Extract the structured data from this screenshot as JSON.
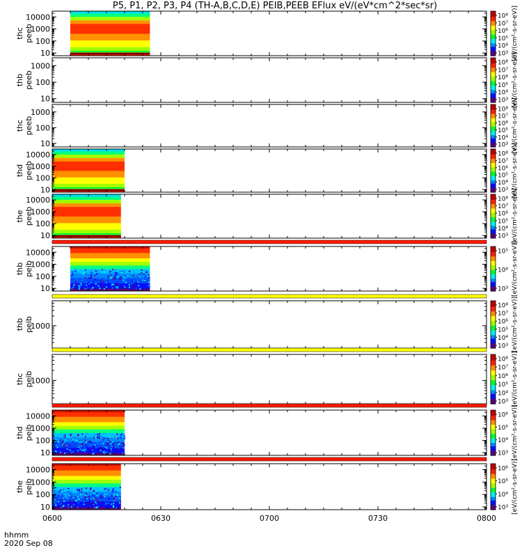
{
  "title": "P5, P1, P2, P3, P4 (TH-A,B,C,D,E) PEIB,PEEB EFlux eV/(eV*cm^2*sec*sr)",
  "time_axis": {
    "unit_label": "hhmm",
    "date_label": "2020 Sep 08",
    "ticks": [
      "0600",
      "0630",
      "0700",
      "0730",
      "0800"
    ]
  },
  "colors": {
    "bar_red": "#ff1a00",
    "bar_yellow": "#ffff00",
    "colormap": [
      "#5b0077",
      "#0010ff",
      "#0088ff",
      "#00f0f0",
      "#00ff30",
      "#a0ff00",
      "#ffff00",
      "#ff9000",
      "#ff2000",
      "#c00000",
      "#ffffff"
    ]
  },
  "chart_data": [
    {
      "type": "heatmap",
      "probe": "thc",
      "species": "peeb",
      "ylabel_1": "thc",
      "ylabel_2": "peeb",
      "y_scale": "log",
      "ylim": [
        6,
        30000
      ],
      "yticks": [
        "10000",
        "1000",
        "100",
        "10"
      ],
      "data_minutes": [
        5,
        27
      ],
      "layout": "mid",
      "bar_above": "none",
      "colorbar": {
        "labels": [
          "10⁸",
          "10⁷",
          "10⁶",
          "10⁵",
          "10⁴",
          "10³"
        ],
        "unit": "[eV/(cm²-s-sr-eV)]"
      }
    },
    {
      "type": "heatmap",
      "probe": "thb",
      "species": "peeb",
      "ylabel_1": "thb",
      "ylabel_2": "peeb",
      "y_scale": "log",
      "ylim": [
        6,
        3000
      ],
      "yticks": [
        "1000",
        "100",
        "10"
      ],
      "data_minutes": null,
      "layout": "none",
      "bar_above": "none",
      "colorbar": {
        "labels": [
          "10⁸",
          "10⁷",
          "10⁶",
          "10⁵",
          "10⁴",
          "10³"
        ],
        "unit": "[eV/(cm²-s-sr-eV)]"
      }
    },
    {
      "type": "heatmap",
      "probe": "thc",
      "species": "peeb",
      "ylabel_1": "thc",
      "ylabel_2": "peeb",
      "y_scale": "log",
      "ylim": [
        6,
        3000
      ],
      "yticks": [
        "1000",
        "100",
        "10"
      ],
      "data_minutes": null,
      "layout": "none",
      "bar_above": "none",
      "colorbar": {
        "labels": [
          "10⁸",
          "10⁷",
          "10⁶",
          "10⁵",
          "10⁴",
          "10³"
        ],
        "unit": "[eV/(cm²-s-sr-eV)]"
      }
    },
    {
      "type": "heatmap",
      "probe": "thd",
      "species": "peeb",
      "ylabel_1": "thd",
      "ylabel_2": "peeb",
      "y_scale": "log",
      "ylim": [
        6,
        30000
      ],
      "yticks": [
        "10000",
        "1000",
        "100",
        "10"
      ],
      "data_minutes": [
        0,
        20
      ],
      "layout": "mid",
      "bar_above": "none",
      "colorbar": {
        "labels": [
          "10⁸",
          "10⁷",
          "10⁶",
          "10⁵",
          "10⁴",
          "10³"
        ],
        "unit": "[eV/(cm²-s-sr-eV)]"
      }
    },
    {
      "type": "heatmap",
      "probe": "the",
      "species": "peeb",
      "ylabel_1": "the",
      "ylabel_2": "peeb",
      "y_scale": "log",
      "ylim": [
        6,
        30000
      ],
      "yticks": [
        "10000",
        "1000",
        "100",
        "10"
      ],
      "data_minutes": [
        0,
        19
      ],
      "layout": "mid",
      "bar_above": "none",
      "colorbar": {
        "labels": [
          "10⁸",
          "10⁷",
          "10⁶",
          "10⁵",
          "10⁴",
          "10³"
        ],
        "unit": "[eV/(cm²-s-sr-eV)]"
      }
    },
    {
      "type": "heatmap",
      "probe": "thb",
      "species": "peib",
      "ylabel_1": "thb",
      "ylabel_2": "peib",
      "y_scale": "log",
      "ylim": [
        6,
        30000
      ],
      "yticks": [
        "10000",
        "1000",
        "100",
        "10"
      ],
      "data_minutes": [
        5,
        27
      ],
      "layout": "ion",
      "bar_above": "red",
      "colorbar": {
        "labels": [
          "10⁵",
          "10⁴",
          "10³"
        ],
        "unit": "[eV/(cm²-s-sr-eV)]"
      }
    },
    {
      "type": "heatmap",
      "probe": "thb",
      "species": "peib",
      "ylabel_1": "thb",
      "ylabel_2": "peib",
      "y_scale": "log",
      "ylim": [
        200,
        6000
      ],
      "yticks": [
        "1000"
      ],
      "data_minutes": null,
      "layout": "none",
      "bar_above": "yellow",
      "colorbar": {
        "labels": [
          "10⁸",
          "10⁷",
          "10⁶",
          "10⁵",
          "10⁴",
          "10³"
        ],
        "unit": "[eV/(cm²-s-sr-eV)]"
      }
    },
    {
      "type": "heatmap",
      "probe": "thc",
      "species": "peib",
      "ylabel_1": "thc",
      "ylabel_2": "peib",
      "y_scale": "log",
      "ylim": [
        200,
        6000
      ],
      "yticks": [
        "1000"
      ],
      "data_minutes": null,
      "layout": "none",
      "bar_above": "yellow",
      "colorbar": {
        "labels": [
          "10⁸",
          "10⁷",
          "10⁶",
          "10⁵",
          "10⁴",
          "10³"
        ],
        "unit": "[eV/(cm²-s-sr-eV)]"
      }
    },
    {
      "type": "heatmap",
      "probe": "thd",
      "species": "peib",
      "ylabel_1": "thd",
      "ylabel_2": "peib",
      "y_scale": "log",
      "ylim": [
        6,
        30000
      ],
      "yticks": [
        "10000",
        "1000",
        "100",
        "10"
      ],
      "data_minutes": [
        0,
        20
      ],
      "layout": "ion",
      "bar_above": "red",
      "colorbar": {
        "labels": [
          "10⁶",
          "10⁵",
          "10⁴",
          "10³"
        ],
        "unit": "[eV/(cm²-s-sr-eV)]"
      }
    },
    {
      "type": "heatmap",
      "probe": "the",
      "species": "peib",
      "ylabel_1": "the",
      "ylabel_2": "peib",
      "y_scale": "log",
      "ylim": [
        6,
        30000
      ],
      "yticks": [
        "10000",
        "1000",
        "100",
        "10"
      ],
      "data_minutes": [
        0,
        19
      ],
      "layout": "ion",
      "bar_above": "red",
      "colorbar": {
        "labels": [
          "10⁶",
          "10⁵",
          "10⁴",
          "10³"
        ],
        "unit": "[eV/(cm²-s-sr-eV)]"
      }
    }
  ]
}
